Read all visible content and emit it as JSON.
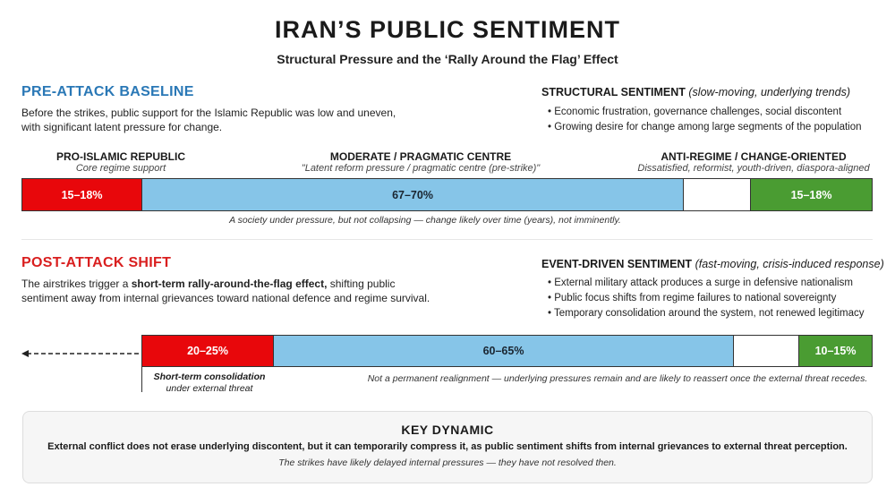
{
  "header": {
    "title": "IRAN’S PUBLIC SENTIMENT",
    "subtitle": "Structural Pressure and the ‘Rally Around the Flag’ Effect"
  },
  "pre_attack": {
    "heading": "PRE-ATTACK BASELINE",
    "heading_color": "#2a78b6",
    "description": [
      "Before the strikes, public support for the Islamic Republic was low and uneven,",
      "with significant latent pressure for change."
    ],
    "side_heading": "STRUCTURAL SENTIMENT",
    "side_qualifier": "(slow-moving, underlying trends)",
    "bullets": [
      "Economic frustration, governance challenges, social discontent",
      "Growing desire for change among large segments of the population"
    ],
    "categories": [
      {
        "label": "PRO-ISLAMIC REPUBLIC",
        "sub": "Core regime support"
      },
      {
        "label": "MODERATE / PRAGMATIC CENTRE",
        "sub": "\"Latent reform pressure / pragmatic centre (pre-strike)\""
      },
      {
        "label": "ANTI-REGIME / CHANGE-ORIENTED",
        "sub": "Dissatisfied, reformist, youth-driven, diaspora-aligned"
      }
    ],
    "segments": [
      {
        "value": "15–18%",
        "color": "#e8070b",
        "text_color": "#ffffff"
      },
      {
        "value": "67–70%",
        "color": "#86c5e8",
        "text_color": "#1a2530"
      },
      {
        "value": "",
        "color": "#ffffff",
        "text_color": "#000000"
      },
      {
        "value": "15–18%",
        "color": "#4a9c32",
        "text_color": "#ffffff"
      }
    ],
    "note": "A society under pressure, but not collapsing — change likely over time (years), not imminently."
  },
  "post_attack": {
    "heading": "POST-ATTACK SHIFT",
    "heading_color": "#d91f1f",
    "description_pre": "The airstrikes trigger a ",
    "description_bold": "short-term rally-around-the-flag effect,",
    "description_post": " shifting public",
    "description_line2": "sentiment away from internal grievances toward national defence and regime survival.",
    "side_heading": "EVENT-DRIVEN SENTIMENT",
    "side_qualifier": "(fast-moving, crisis-induced response)",
    "bullets": [
      "External military attack produces a surge in defensive nationalism",
      "Public focus shifts from regime failures to national sovereignty",
      "Temporary consolidation around the system, not renewed legitimacy"
    ],
    "segments": [
      {
        "value": "20–25%",
        "color": "#e8070b",
        "text_color": "#ffffff"
      },
      {
        "value": "60–65%",
        "color": "#86c5e8",
        "text_color": "#1a2530"
      },
      {
        "value": "",
        "color": "#ffffff",
        "text_color": "#000000"
      },
      {
        "value": "10–15%",
        "color": "#4a9c32",
        "text_color": "#ffffff"
      }
    ],
    "callout_bold": "Short-term consolidation",
    "callout": "under external threat",
    "note": "Not a permanent realignment — underlying pressures remain and are likely to reassert once the external threat recedes."
  },
  "key_dynamic": {
    "heading": "KEY DYNAMIC",
    "text": "External conflict does not erase underlying discontent, but it can temporarily compress it, as public sentiment shifts from internal grievances to external threat perception.",
    "italic": "The strikes have likely delayed internal pressures — they have not resolved then."
  }
}
